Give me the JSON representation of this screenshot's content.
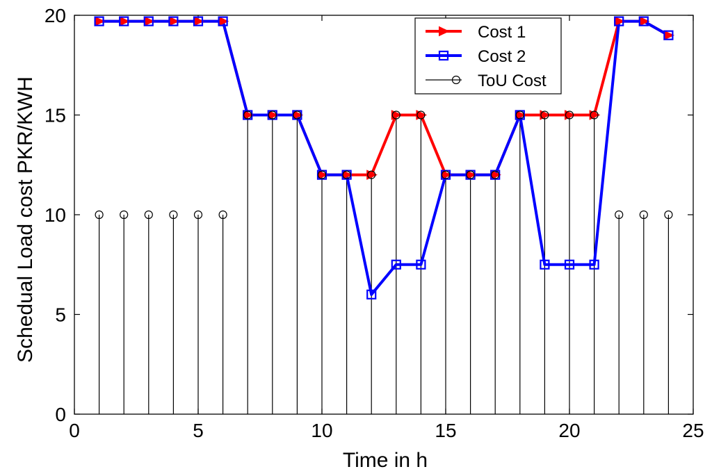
{
  "chart_data": {
    "type": "line",
    "xlabel": "Time in h",
    "ylabel": "Schedual Load cost PKR/KWH",
    "xlim": [
      0,
      25
    ],
    "ylim": [
      0,
      20
    ],
    "xticks": [
      0,
      5,
      10,
      15,
      20,
      25
    ],
    "yticks": [
      0,
      5,
      10,
      15,
      20
    ],
    "grid": false,
    "legend_position": "top-right",
    "x": [
      1,
      2,
      3,
      4,
      5,
      6,
      7,
      8,
      9,
      10,
      11,
      12,
      13,
      14,
      15,
      16,
      17,
      18,
      19,
      20,
      21,
      22,
      23,
      24
    ],
    "series": [
      {
        "name": "Cost 1",
        "style": "line",
        "marker": "triangle-right",
        "color": "#ff0000",
        "values": [
          19.7,
          19.7,
          19.7,
          19.7,
          19.7,
          19.7,
          15,
          15,
          15,
          12,
          12,
          12,
          15,
          15,
          12,
          12,
          12,
          15,
          15,
          15,
          15,
          19.7,
          19.7,
          19
        ]
      },
      {
        "name": "Cost 2",
        "style": "line",
        "marker": "square",
        "color": "#0000ff",
        "values": [
          19.7,
          19.7,
          19.7,
          19.7,
          19.7,
          19.7,
          15,
          15,
          15,
          12,
          12,
          6,
          7.5,
          7.5,
          12,
          12,
          12,
          15,
          7.5,
          7.5,
          7.5,
          19.7,
          19.7,
          19
        ]
      },
      {
        "name": "ToU Cost",
        "style": "stem",
        "marker": "circle",
        "color": "#000000",
        "values": [
          10,
          10,
          10,
          10,
          10,
          10,
          15,
          15,
          15,
          12,
          12,
          12,
          15,
          15,
          12,
          12,
          12,
          15,
          15,
          15,
          15,
          10,
          10,
          10
        ]
      }
    ]
  }
}
